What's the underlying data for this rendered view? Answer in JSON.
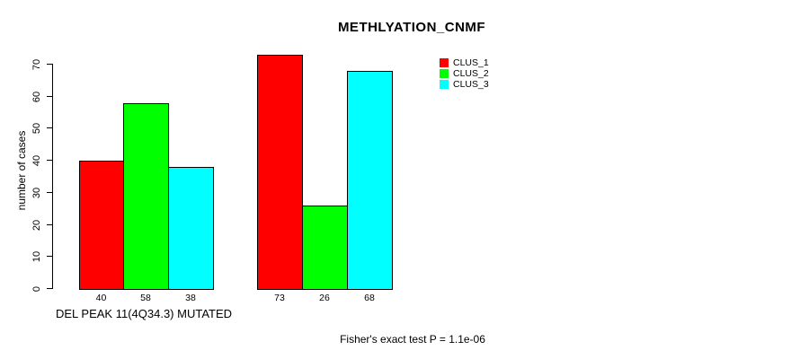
{
  "chart": {
    "title": "METHLYATION_CNMF",
    "ylabel": "number of cases",
    "xlabel": "DEL PEAK 11(4Q34.3) MUTATED",
    "annotation": "Fisher's exact test P = 1.1e-06"
  },
  "chart_data": {
    "type": "bar",
    "title": "METHLYATION_CNMF",
    "ylabel": "number of cases",
    "xlabel": "DEL PEAK 11(4Q34.3) MUTATED",
    "annotation": "Fisher's exact test P = 1.1e-06",
    "categories": [
      "DEL PEAK 11(4Q34.3) MUTATED",
      ""
    ],
    "series": [
      {
        "name": "CLUS_1",
        "color": "#FF0000",
        "values": [
          40,
          73
        ]
      },
      {
        "name": "CLUS_2",
        "color": "#00FF00",
        "values": [
          58,
          26
        ]
      },
      {
        "name": "CLUS_3",
        "color": "#00FFFF",
        "values": [
          38,
          68
        ]
      }
    ],
    "bar_labels": [
      [
        40,
        58,
        38
      ],
      [
        73,
        26,
        68
      ]
    ],
    "ylim": [
      0,
      70
    ],
    "yticks": [
      0,
      10,
      20,
      30,
      40,
      50,
      60,
      70
    ],
    "grid": false,
    "legend_position": "top-right",
    "bar_border_color": "#000000",
    "background_color": "#FFFFFF"
  }
}
